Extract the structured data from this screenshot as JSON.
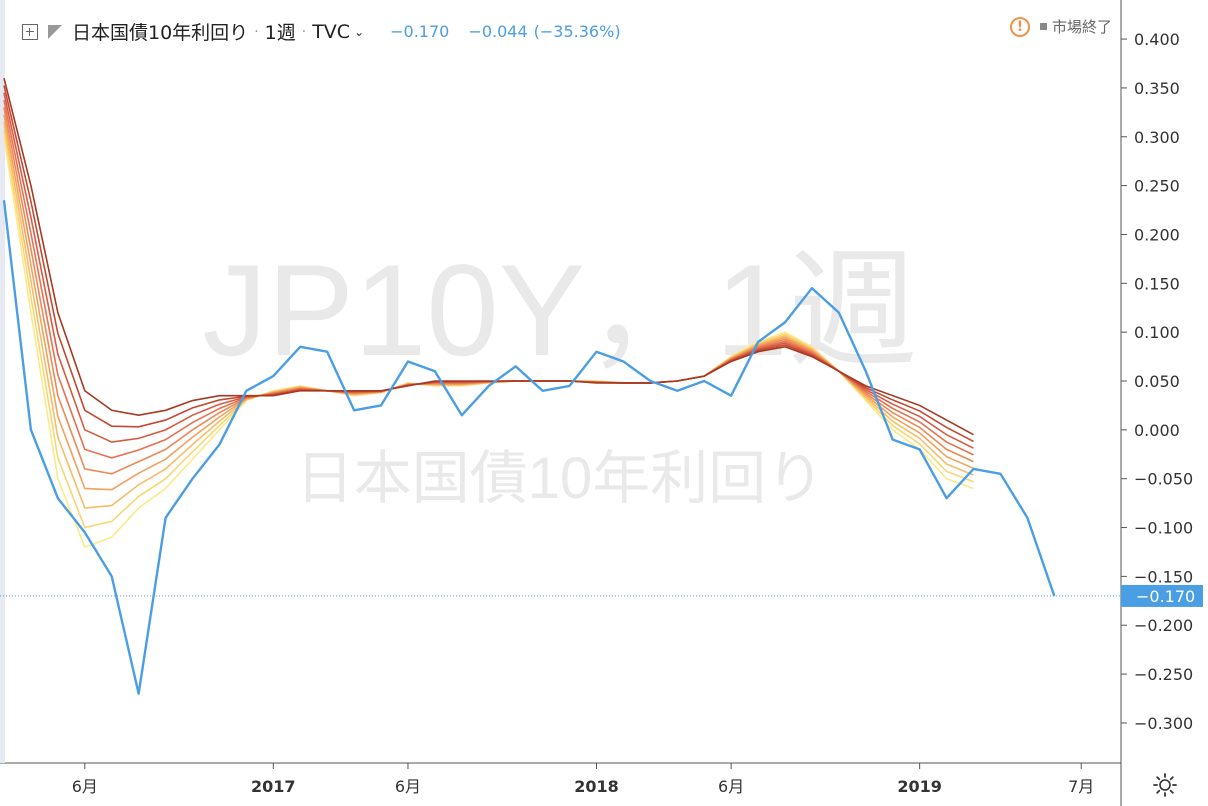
{
  "header": {
    "title": "日本国債10年利回り",
    "interval": "1週",
    "exchange": "TVC",
    "last_value": "−0.170",
    "change": "−0.044",
    "change_pct": "(−35.36%)"
  },
  "status": {
    "market_label": "市場終了"
  },
  "watermark": {
    "main": "JP10Y，1週",
    "sub": "日本国債10年利回り"
  },
  "colors": {
    "price_line": "#4a9ee3",
    "ribbon": [
      "#fce98a",
      "#f9d576",
      "#f6bd67",
      "#f1a25d",
      "#ec8a56",
      "#e57250",
      "#d85a43",
      "#c24a32",
      "#a63a22"
    ],
    "axis_text": "#333333"
  },
  "chart_data": {
    "type": "line",
    "title": "日本国債10年利回り",
    "x": [
      "2016-03",
      "2016-04",
      "2016-05",
      "2016-06",
      "2016-07",
      "2016-08",
      "2016-09",
      "2016-10",
      "2016-11",
      "2016-12",
      "2017-01",
      "2017-02",
      "2017-03",
      "2017-04",
      "2017-05",
      "2017-06",
      "2017-07",
      "2017-08",
      "2017-09",
      "2017-10",
      "2017-11",
      "2017-12",
      "2018-01",
      "2018-02",
      "2018-03",
      "2018-04",
      "2018-05",
      "2018-06",
      "2018-07",
      "2018-08",
      "2018-09",
      "2018-10",
      "2018-11",
      "2018-12",
      "2019-01",
      "2019-02",
      "2019-03",
      "2019-04",
      "2019-05",
      "2019-06"
    ],
    "series": [
      {
        "name": "",
        "values": [
          0.235,
          0.0,
          -0.07,
          -0.105,
          -0.15,
          -0.27,
          -0.09,
          -0.05,
          -0.015,
          0.04,
          0.055,
          0.085,
          0.08,
          0.02,
          0.025,
          0.07,
          0.06,
          0.015,
          0.045,
          0.065,
          0.04,
          0.045,
          0.08,
          0.07,
          0.05,
          0.04,
          0.05,
          0.035,
          0.09,
          0.11,
          0.145,
          0.12,
          0.06,
          -0.01,
          -0.02,
          -0.07,
          -0.04,
          -0.045,
          -0.09,
          -0.17
        ]
      }
    ],
    "ribbon": {
      "count": 9,
      "fastest": [
        0.3,
        0.12,
        -0.05,
        -0.12,
        -0.11,
        -0.08,
        -0.06,
        -0.03,
        0.0,
        0.03,
        0.04,
        0.045,
        0.04,
        0.035,
        0.038,
        0.048,
        0.045,
        0.045,
        0.048,
        0.05,
        0.05,
        0.05,
        0.05,
        0.048,
        0.048,
        0.05,
        0.055,
        0.075,
        0.09,
        0.1,
        0.085,
        0.06,
        0.03,
        0.0,
        -0.02,
        -0.05,
        -0.06
      ],
      "slowest": [
        0.36,
        0.25,
        0.12,
        0.04,
        0.02,
        0.015,
        0.02,
        0.03,
        0.035,
        0.035,
        0.035,
        0.04,
        0.04,
        0.04,
        0.04,
        0.045,
        0.05,
        0.05,
        0.05,
        0.05,
        0.05,
        0.05,
        0.048,
        0.048,
        0.048,
        0.05,
        0.055,
        0.07,
        0.08,
        0.085,
        0.075,
        0.06,
        0.045,
        0.035,
        0.025,
        0.01,
        -0.005
      ]
    },
    "ylim": [
      -0.34,
      0.44
    ],
    "y_ticks": [
      "0.400",
      "0.350",
      "0.300",
      "0.250",
      "0.200",
      "0.150",
      "0.100",
      "0.050",
      "0.000",
      "−0.050",
      "−0.100",
      "−0.150",
      "−0.200",
      "−0.250",
      "−0.300"
    ],
    "y_tick_values": [
      0.4,
      0.35,
      0.3,
      0.25,
      0.2,
      0.15,
      0.1,
      0.05,
      0.0,
      -0.05,
      -0.1,
      -0.15,
      -0.2,
      -0.25,
      -0.3
    ],
    "x_ticks": [
      {
        "label": "6月",
        "at": "2016-06"
      },
      {
        "label": "2017",
        "at": "2017-01"
      },
      {
        "label": "6月",
        "at": "2017-06"
      },
      {
        "label": "2018",
        "at": "2018-01"
      },
      {
        "label": "6月",
        "at": "2018-06"
      },
      {
        "label": "2019",
        "at": "2019-01"
      },
      {
        "label": "7月",
        "at": "2019-07"
      }
    ],
    "last_price_label": "−0.170",
    "last_price_value": -0.17
  }
}
